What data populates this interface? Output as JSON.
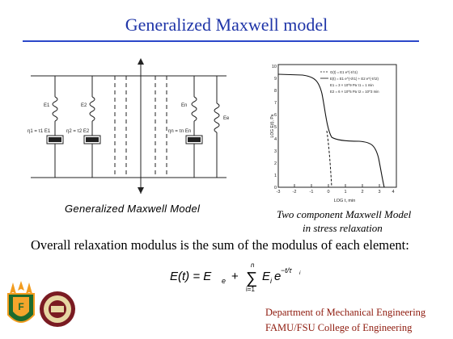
{
  "slide": {
    "title": "Generalized Maxwell model",
    "left_caption": "Generalized Maxwell Model",
    "right_caption_line1": "Two component Maxwell Model",
    "right_caption_line2": "in stress relaxation",
    "statement": "Overall relaxation modulus is the sum of the modulus of each element:",
    "footer_line1": "Department of Mechanical Engineering",
    "footer_line2": "FAMU/FSU College of Engineering"
  },
  "circuit": {
    "spring_labels": [
      "E1",
      "E2",
      "En",
      "Ee"
    ],
    "dashpot_labels": [
      "η1 = τ1 E1",
      "η2 = τ2 E2",
      "ηn = τn En"
    ]
  },
  "plot": {
    "ylabel": "LOG E(t), Pa",
    "xlabel": "LOG t, min",
    "legend": [
      "G(t) = E1 e^(-t/τ1)",
      "E(t) = E1 e^(-t/τ1) + E2 e^(-t/τ2)",
      "E1 = 3 × 10^9 Pa   τ1 = 1 min",
      "E2 = 6 × 10^5 Pa   τ2 = 10^3 min"
    ],
    "x_ticks": [
      "-3",
      "-2",
      "-1",
      "0",
      "1",
      "2",
      "3",
      "4"
    ],
    "y_ticks": [
      "10",
      "9",
      "8",
      "7",
      "6",
      "5",
      "4",
      "3",
      "2",
      "1",
      "0"
    ]
  },
  "equation": {
    "lhs": "E(t) = E",
    "lhs_sub": "e",
    "plus": "+",
    "sum_top": "n",
    "sum_bottom": "i=1",
    "term": "E",
    "term_sub": "i",
    "exp_base": "e",
    "exponent": "−t/τ",
    "exponent_sub": "i"
  },
  "colors": {
    "title": "#1f35a8",
    "rule": "#2b47c9",
    "footer": "#8e1a0d"
  }
}
